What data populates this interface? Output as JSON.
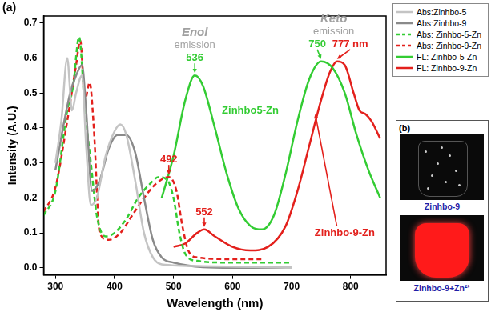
{
  "chart_data": {
    "type": "line",
    "panel_label": "(a)",
    "x_label": "Wavelength (nm)",
    "y_label": "Intensity (A.U.)",
    "xlim": [
      280,
      860
    ],
    "xticks": [
      300,
      400,
      500,
      600,
      700,
      800
    ],
    "ylim": [
      -0.02,
      0.72
    ],
    "yticks": [
      {
        "value": 0,
        "label": "0.0"
      },
      0.1,
      0.2,
      0.3,
      0.4,
      0.5,
      0.6,
      0.7
    ],
    "grid": false,
    "legend": "upper right",
    "series": [
      {
        "name": "Abs:Zinhbo-5",
        "color": "#c4c4c4",
        "line_style": "solid",
        "marker": "none",
        "x": [
          300,
          310,
          320,
          328,
          335,
          345,
          352,
          360,
          370,
          385,
          400,
          410,
          420,
          435,
          450,
          465,
          480,
          550,
          700
        ],
        "values": [
          0.3,
          0.42,
          0.6,
          0.45,
          0.5,
          0.55,
          0.35,
          0.18,
          0.2,
          0.32,
          0.39,
          0.41,
          0.38,
          0.25,
          0.1,
          0.03,
          0.01,
          0.005,
          0.0
        ]
      },
      {
        "name": "Abs:Zinhbo-9",
        "color": "#8a8a8a",
        "line_style": "solid",
        "marker": "none",
        "x": [
          300,
          315,
          325,
          335,
          345,
          352,
          362,
          375,
          390,
          405,
          420,
          435,
          450,
          465,
          480,
          500,
          600,
          700
        ],
        "values": [
          0.28,
          0.42,
          0.5,
          0.55,
          0.58,
          0.45,
          0.22,
          0.25,
          0.34,
          0.38,
          0.38,
          0.33,
          0.2,
          0.08,
          0.03,
          0.015,
          0.0,
          0.0
        ]
      },
      {
        "name": "Abs: Zinhbo-5-Zn",
        "color": "#33cc33",
        "line_style": "dashed",
        "marker": "none",
        "x": [
          280,
          300,
          320,
          330,
          340,
          350,
          360,
          370,
          385,
          400,
          420,
          440,
          460,
          475,
          490,
          500,
          510,
          520,
          540,
          600,
          700
        ],
        "values": [
          0.15,
          0.22,
          0.45,
          0.52,
          0.66,
          0.45,
          0.3,
          0.15,
          0.09,
          0.1,
          0.14,
          0.2,
          0.24,
          0.26,
          0.25,
          0.2,
          0.1,
          0.04,
          0.02,
          0.015,
          0.015
        ]
      },
      {
        "name": "Abs: Zinhbo-9-Zn",
        "color": "#e3201c",
        "line_style": "dashed",
        "marker": "none",
        "x": [
          280,
          300,
          320,
          335,
          342,
          350,
          358,
          365,
          375,
          390,
          410,
          430,
          450,
          470,
          492,
          505,
          515,
          525,
          540,
          600,
          650
        ],
        "values": [
          0.16,
          0.23,
          0.42,
          0.58,
          0.65,
          0.48,
          0.53,
          0.4,
          0.1,
          0.08,
          0.1,
          0.15,
          0.2,
          0.24,
          0.26,
          0.22,
          0.12,
          0.05,
          0.03,
          0.025,
          0.025
        ]
      },
      {
        "name": "FL: Zinhbo-5-Zn",
        "color": "#33cc33",
        "line_style": "solid",
        "marker": "none",
        "x": [
          480,
          500,
          520,
          536,
          550,
          570,
          590,
          610,
          630,
          650,
          670,
          690,
          710,
          730,
          750,
          770,
          790,
          810,
          830,
          850
        ],
        "values": [
          0.2,
          0.32,
          0.48,
          0.55,
          0.52,
          0.4,
          0.27,
          0.17,
          0.12,
          0.11,
          0.15,
          0.27,
          0.42,
          0.54,
          0.59,
          0.57,
          0.5,
          0.38,
          0.28,
          0.2
        ]
      },
      {
        "name": "FL: Zinhbo-9-Zn",
        "color": "#e3201c",
        "line_style": "solid",
        "marker": "none",
        "x": [
          500,
          520,
          540,
          552,
          570,
          600,
          630,
          660,
          690,
          710,
          730,
          750,
          765,
          777,
          790,
          805,
          815,
          825,
          835,
          850
        ],
        "values": [
          0.06,
          0.07,
          0.1,
          0.11,
          0.09,
          0.06,
          0.05,
          0.06,
          0.12,
          0.22,
          0.35,
          0.48,
          0.56,
          0.59,
          0.58,
          0.5,
          0.45,
          0.44,
          0.42,
          0.37
        ]
      }
    ],
    "peak_labels": [
      {
        "text": "492",
        "x": 492,
        "y": 0.26,
        "series": "Abs: Zinhbo-9-Zn"
      },
      {
        "text": "536",
        "x": 536,
        "y": 0.55,
        "series": "FL: Zinhbo-5-Zn"
      },
      {
        "text": "552",
        "x": 552,
        "y": 0.11,
        "series": "FL: Zinhbo-9-Zn"
      },
      {
        "text": "750",
        "x": 750,
        "y": 0.59,
        "series": "FL: Zinhbo-5-Zn"
      },
      {
        "text": "777 nm",
        "x": 777,
        "y": 0.59,
        "series": "FL: Zinhbo-9-Zn"
      }
    ],
    "curve_labels": [
      {
        "text": "Zinhbo5-Zn",
        "x": 630,
        "y": 0.45,
        "series": "FL: Zinhbo-5-Zn"
      },
      {
        "text": "Zinhbo-9-Zn",
        "x": 790,
        "y": 0.1,
        "series": "FL: Zinhbo-9-Zn",
        "arrow_x": 740,
        "arrow_y": 0.44
      }
    ],
    "emission_labels": [
      {
        "text": "Enol",
        "subtext": "emission",
        "over": [
          "536"
        ]
      },
      {
        "text": "Keto",
        "subtext": "emission",
        "over": [
          "750",
          "777 nm"
        ]
      }
    ]
  },
  "panel_b": {
    "label": "(b)",
    "captions": [
      "Zinhbo-9",
      "Zinhbo-9+Zn²⁺"
    ]
  }
}
